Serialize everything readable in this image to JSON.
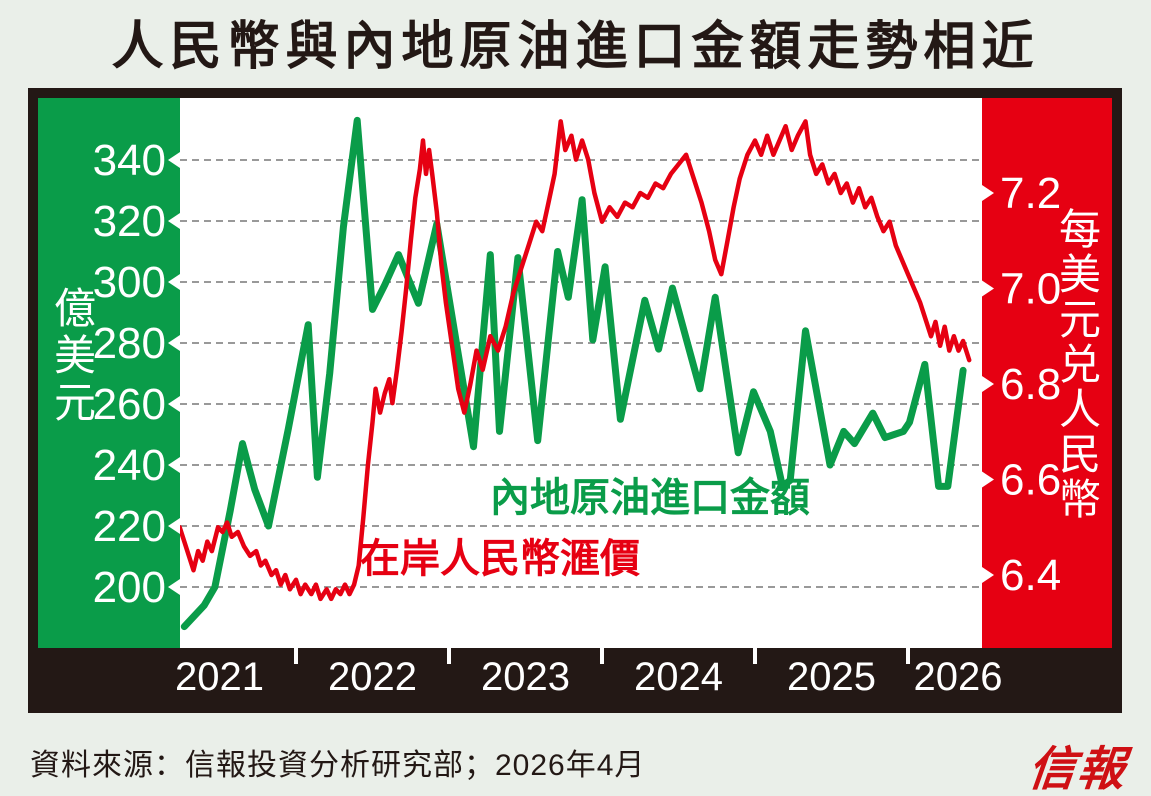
{
  "title": "人民幣與內地原油進口金額走勢相近",
  "source_note": "資料來源：信報投資分析研究部；2026年4月",
  "logo": "信報",
  "colors": {
    "green": "#0a9c49",
    "red": "#e60012",
    "black": "#231815",
    "page_bg": "#eaefe9",
    "grid": "#999999",
    "white": "#ffffff",
    "logo_red": "#cf1014"
  },
  "chart_data": {
    "type": "line",
    "title": "人民幣與內地原油進口金額走勢相近",
    "x_axis": {
      "years": [
        2021,
        2022,
        2023,
        2024,
        2025,
        2026
      ],
      "range": [
        2021.24,
        2026.48
      ]
    },
    "left_axis": {
      "title": "億美元",
      "ticks": [
        340,
        320,
        300,
        280,
        260,
        240,
        220,
        200
      ],
      "range": [
        180,
        360
      ]
    },
    "right_axis": {
      "title": "每美元兑人民幣",
      "ticks": [
        7.2,
        7.0,
        6.8,
        6.6,
        6.4
      ],
      "range": [
        6.25,
        7.42
      ]
    },
    "grid": "horizontal dashed, left-axis ticks only",
    "legend_position": "inline labels on plot",
    "series": [
      {
        "name": "內地原油進口金額",
        "axis": "left",
        "color": "#0a9c49",
        "points": [
          [
            2021.27,
            187
          ],
          [
            2021.4,
            194
          ],
          [
            2021.47,
            200
          ],
          [
            2021.57,
            225
          ],
          [
            2021.65,
            247
          ],
          [
            2021.73,
            232
          ],
          [
            2021.82,
            220
          ],
          [
            2021.95,
            252
          ],
          [
            2022.08,
            286
          ],
          [
            2022.14,
            236
          ],
          [
            2022.22,
            270
          ],
          [
            2022.31,
            318
          ],
          [
            2022.4,
            353
          ],
          [
            2022.5,
            291
          ],
          [
            2022.58,
            299
          ],
          [
            2022.67,
            309
          ],
          [
            2022.8,
            293
          ],
          [
            2022.92,
            319
          ],
          [
            2023.16,
            246
          ],
          [
            2023.27,
            309
          ],
          [
            2023.33,
            251
          ],
          [
            2023.45,
            308
          ],
          [
            2023.58,
            248
          ],
          [
            2023.71,
            310
          ],
          [
            2023.78,
            295
          ],
          [
            2023.87,
            327
          ],
          [
            2023.94,
            281
          ],
          [
            2024.02,
            305
          ],
          [
            2024.12,
            255
          ],
          [
            2024.28,
            294
          ],
          [
            2024.37,
            278
          ],
          [
            2024.46,
            298
          ],
          [
            2024.64,
            265
          ],
          [
            2024.74,
            295
          ],
          [
            2024.89,
            244
          ],
          [
            2024.99,
            264
          ],
          [
            2025.1,
            251
          ],
          [
            2025.18,
            233
          ],
          [
            2025.23,
            235
          ],
          [
            2025.33,
            284
          ],
          [
            2025.49,
            240
          ],
          [
            2025.58,
            251
          ],
          [
            2025.65,
            247
          ],
          [
            2025.77,
            257
          ],
          [
            2025.85,
            249
          ],
          [
            2025.97,
            251
          ],
          [
            2026.01,
            254
          ],
          [
            2026.11,
            273
          ],
          [
            2026.2,
            233
          ],
          [
            2026.26,
            233
          ],
          [
            2026.36,
            271
          ]
        ]
      },
      {
        "name": "在岸人民幣滙價",
        "axis": "right",
        "color": "#e60012",
        "points": [
          [
            2021.24,
            6.5
          ],
          [
            2021.27,
            6.47
          ],
          [
            2021.3,
            6.44
          ],
          [
            2021.33,
            6.41
          ],
          [
            2021.36,
            6.45
          ],
          [
            2021.39,
            6.43
          ],
          [
            2021.42,
            6.47
          ],
          [
            2021.45,
            6.45
          ],
          [
            2021.49,
            6.5
          ],
          [
            2021.52,
            6.49
          ],
          [
            2021.55,
            6.51
          ],
          [
            2021.58,
            6.48
          ],
          [
            2021.62,
            6.49
          ],
          [
            2021.66,
            6.46
          ],
          [
            2021.7,
            6.44
          ],
          [
            2021.74,
            6.45
          ],
          [
            2021.77,
            6.42
          ],
          [
            2021.8,
            6.43
          ],
          [
            2021.84,
            6.4
          ],
          [
            2021.87,
            6.41
          ],
          [
            2021.9,
            6.38
          ],
          [
            2021.93,
            6.4
          ],
          [
            2021.96,
            6.37
          ],
          [
            2022.0,
            6.39
          ],
          [
            2022.03,
            6.36
          ],
          [
            2022.06,
            6.38
          ],
          [
            2022.1,
            6.36
          ],
          [
            2022.13,
            6.38
          ],
          [
            2022.16,
            6.35
          ],
          [
            2022.2,
            6.37
          ],
          [
            2022.23,
            6.35
          ],
          [
            2022.26,
            6.37
          ],
          [
            2022.29,
            6.36
          ],
          [
            2022.32,
            6.38
          ],
          [
            2022.35,
            6.36
          ],
          [
            2022.38,
            6.38
          ],
          [
            2022.41,
            6.42
          ],
          [
            2022.44,
            6.52
          ],
          [
            2022.47,
            6.63
          ],
          [
            2022.5,
            6.72
          ],
          [
            2022.52,
            6.79
          ],
          [
            2022.55,
            6.74
          ],
          [
            2022.58,
            6.78
          ],
          [
            2022.61,
            6.81
          ],
          [
            2022.63,
            6.76
          ],
          [
            2022.66,
            6.83
          ],
          [
            2022.69,
            6.91
          ],
          [
            2022.72,
            7.0
          ],
          [
            2022.75,
            7.1
          ],
          [
            2022.78,
            7.19
          ],
          [
            2022.81,
            7.25
          ],
          [
            2022.83,
            7.31
          ],
          [
            2022.85,
            7.24
          ],
          [
            2022.87,
            7.29
          ],
          [
            2022.89,
            7.24
          ],
          [
            2022.92,
            7.16
          ],
          [
            2022.95,
            7.05
          ],
          [
            2022.98,
            6.97
          ],
          [
            2023.02,
            6.88
          ],
          [
            2023.06,
            6.79
          ],
          [
            2023.1,
            6.74
          ],
          [
            2023.14,
            6.8
          ],
          [
            2023.18,
            6.87
          ],
          [
            2023.22,
            6.83
          ],
          [
            2023.27,
            6.9
          ],
          [
            2023.32,
            6.87
          ],
          [
            2023.37,
            6.92
          ],
          [
            2023.42,
            6.99
          ],
          [
            2023.47,
            7.04
          ],
          [
            2023.52,
            7.09
          ],
          [
            2023.57,
            7.14
          ],
          [
            2023.61,
            7.12
          ],
          [
            2023.65,
            7.18
          ],
          [
            2023.69,
            7.24
          ],
          [
            2023.73,
            7.35
          ],
          [
            2023.76,
            7.29
          ],
          [
            2023.8,
            7.32
          ],
          [
            2023.83,
            7.27
          ],
          [
            2023.87,
            7.31
          ],
          [
            2023.91,
            7.27
          ],
          [
            2023.95,
            7.2
          ],
          [
            2024.0,
            7.14
          ],
          [
            2024.05,
            7.17
          ],
          [
            2024.1,
            7.15
          ],
          [
            2024.15,
            7.18
          ],
          [
            2024.2,
            7.17
          ],
          [
            2024.25,
            7.2
          ],
          [
            2024.3,
            7.19
          ],
          [
            2024.35,
            7.22
          ],
          [
            2024.4,
            7.21
          ],
          [
            2024.45,
            7.24
          ],
          [
            2024.5,
            7.26
          ],
          [
            2024.55,
            7.28
          ],
          [
            2024.6,
            7.23
          ],
          [
            2024.65,
            7.18
          ],
          [
            2024.7,
            7.12
          ],
          [
            2024.74,
            7.06
          ],
          [
            2024.78,
            7.03
          ],
          [
            2024.82,
            7.1
          ],
          [
            2024.86,
            7.17
          ],
          [
            2024.9,
            7.23
          ],
          [
            2024.95,
            7.28
          ],
          [
            2025.0,
            7.31
          ],
          [
            2025.04,
            7.28
          ],
          [
            2025.08,
            7.32
          ],
          [
            2025.12,
            7.28
          ],
          [
            2025.16,
            7.31
          ],
          [
            2025.2,
            7.34
          ],
          [
            2025.24,
            7.29
          ],
          [
            2025.28,
            7.32
          ],
          [
            2025.33,
            7.35
          ],
          [
            2025.36,
            7.28
          ],
          [
            2025.4,
            7.24
          ],
          [
            2025.44,
            7.26
          ],
          [
            2025.48,
            7.22
          ],
          [
            2025.52,
            7.24
          ],
          [
            2025.56,
            7.2
          ],
          [
            2025.6,
            7.22
          ],
          [
            2025.64,
            7.18
          ],
          [
            2025.68,
            7.21
          ],
          [
            2025.72,
            7.17
          ],
          [
            2025.76,
            7.19
          ],
          [
            2025.8,
            7.15
          ],
          [
            2025.84,
            7.12
          ],
          [
            2025.88,
            7.14
          ],
          [
            2025.92,
            7.09
          ],
          [
            2025.96,
            7.06
          ],
          [
            2026.0,
            7.03
          ],
          [
            2026.04,
            7.0
          ],
          [
            2026.08,
            6.97
          ],
          [
            2026.12,
            6.93
          ],
          [
            2026.15,
            6.9
          ],
          [
            2026.18,
            6.93
          ],
          [
            2026.21,
            6.88
          ],
          [
            2026.24,
            6.92
          ],
          [
            2026.27,
            6.87
          ],
          [
            2026.3,
            6.9
          ],
          [
            2026.33,
            6.87
          ],
          [
            2026.36,
            6.89
          ],
          [
            2026.4,
            6.85
          ]
        ]
      }
    ]
  }
}
